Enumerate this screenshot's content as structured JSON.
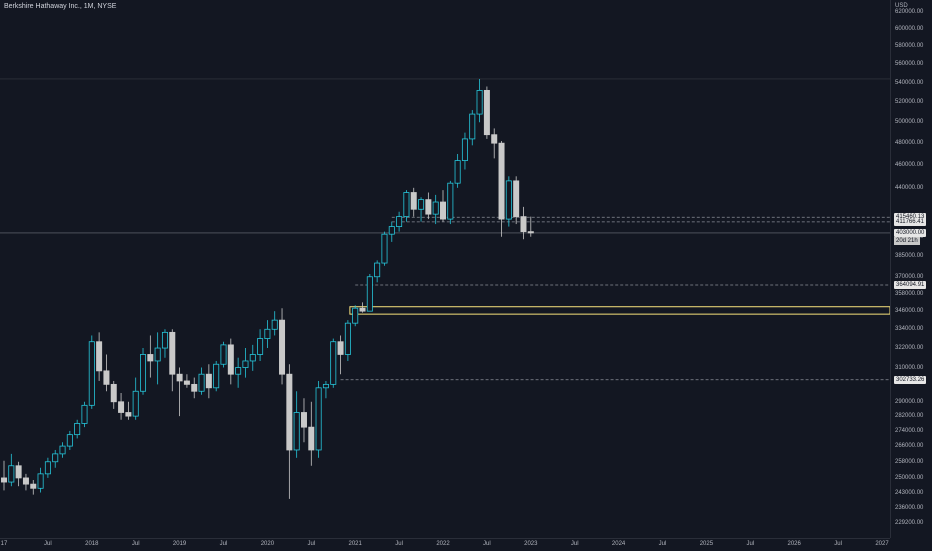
{
  "header": {
    "symbol_title": "Berkshire Hathaway Inc., 1M, NYSE",
    "currency": "USD"
  },
  "colors": {
    "background": "#131722",
    "up_body": "#131722",
    "up_border": "#26c6da",
    "down_body": "#c9c9c9",
    "zone_color": "#f7e27c",
    "dashed_line": "#8a8e98",
    "badge_bg": "#e6e6e6"
  },
  "price_axis": {
    "ticks": [
      "620000.00",
      "600000.00",
      "580000.00",
      "560000.00",
      "540000.00",
      "520000.00",
      "500000.00",
      "480000.00",
      "460000.00",
      "440000.00",
      "415460.13",
      "411766.41",
      "400000.00",
      "385000.00",
      "370000.00",
      "364094.91",
      "358000.00",
      "346000.00",
      "334000.00",
      "322000.00",
      "310000.00",
      "302733.26",
      "290000.00",
      "282000.00",
      "274000.00",
      "266000.00",
      "258000.00",
      "250000.00",
      "243000.00",
      "236000.00",
      "229200.00"
    ],
    "last_price": "403000.00",
    "countdown": "20d 21h"
  },
  "time_axis": {
    "labels": [
      "17",
      "Jul",
      "2018",
      "Jul",
      "2019",
      "Jul",
      "2020",
      "Jul",
      "2021",
      "Jul",
      "2022",
      "Jul",
      "2023",
      "Jul",
      "2024",
      "Jul",
      "2025",
      "Jul",
      "2026",
      "Jul",
      "2027"
    ]
  },
  "chart_data": {
    "type": "candlestick",
    "title": "Berkshire Hathaway Inc., 1M, NYSE",
    "currency": "USD",
    "interval": "1M",
    "x_range": [
      "2017-01",
      "2027-01"
    ],
    "series": [
      {
        "date": "2017-01",
        "open": 250000,
        "high": 258500,
        "low": 244000,
        "close": 248000
      },
      {
        "date": "2017-02",
        "open": 248000,
        "high": 262000,
        "low": 246000,
        "close": 256000
      },
      {
        "date": "2017-03",
        "open": 256000,
        "high": 258000,
        "low": 246000,
        "close": 250000
      },
      {
        "date": "2017-04",
        "open": 250000,
        "high": 252000,
        "low": 244000,
        "close": 247000
      },
      {
        "date": "2017-05",
        "open": 247000,
        "high": 249000,
        "low": 242000,
        "close": 245000
      },
      {
        "date": "2017-06",
        "open": 245000,
        "high": 255000,
        "low": 243000,
        "close": 252000
      },
      {
        "date": "2017-07",
        "open": 252000,
        "high": 260000,
        "low": 250000,
        "close": 258000
      },
      {
        "date": "2017-08",
        "open": 258000,
        "high": 264000,
        "low": 255000,
        "close": 262000
      },
      {
        "date": "2017-09",
        "open": 262000,
        "high": 268000,
        "low": 260000,
        "close": 266000
      },
      {
        "date": "2017-10",
        "open": 266000,
        "high": 274000,
        "low": 264000,
        "close": 272000
      },
      {
        "date": "2017-11",
        "open": 272000,
        "high": 280000,
        "low": 270000,
        "close": 278000
      },
      {
        "date": "2017-12",
        "open": 278000,
        "high": 290000,
        "low": 276000,
        "close": 288000
      },
      {
        "date": "2018-01",
        "open": 288000,
        "high": 330000,
        "low": 286000,
        "close": 326000
      },
      {
        "date": "2018-02",
        "open": 326000,
        "high": 332000,
        "low": 302000,
        "close": 308000
      },
      {
        "date": "2018-03",
        "open": 308000,
        "high": 318000,
        "low": 296000,
        "close": 300000
      },
      {
        "date": "2018-04",
        "open": 300000,
        "high": 302000,
        "low": 286000,
        "close": 290000
      },
      {
        "date": "2018-05",
        "open": 290000,
        "high": 295000,
        "low": 280000,
        "close": 284000
      },
      {
        "date": "2018-06",
        "open": 284000,
        "high": 290000,
        "low": 280000,
        "close": 282000
      },
      {
        "date": "2018-07",
        "open": 282000,
        "high": 304000,
        "low": 280000,
        "close": 296000
      },
      {
        "date": "2018-08",
        "open": 296000,
        "high": 322000,
        "low": 294000,
        "close": 318000
      },
      {
        "date": "2018-09",
        "open": 318000,
        "high": 330000,
        "low": 304000,
        "close": 314000
      },
      {
        "date": "2018-10",
        "open": 314000,
        "high": 332000,
        "low": 300000,
        "close": 322000
      },
      {
        "date": "2018-11",
        "open": 322000,
        "high": 334000,
        "low": 316000,
        "close": 332000
      },
      {
        "date": "2018-12",
        "open": 332000,
        "high": 334000,
        "low": 296000,
        "close": 306000
      },
      {
        "date": "2019-01",
        "open": 306000,
        "high": 310000,
        "low": 282000,
        "close": 302000
      },
      {
        "date": "2019-02",
        "open": 302000,
        "high": 306000,
        "low": 298000,
        "close": 300000
      },
      {
        "date": "2019-03",
        "open": 300000,
        "high": 304000,
        "low": 292000,
        "close": 296000
      },
      {
        "date": "2019-04",
        "open": 296000,
        "high": 310000,
        "low": 294000,
        "close": 306000
      },
      {
        "date": "2019-05",
        "open": 306000,
        "high": 312000,
        "low": 292000,
        "close": 298000
      },
      {
        "date": "2019-06",
        "open": 298000,
        "high": 314000,
        "low": 296000,
        "close": 312000
      },
      {
        "date": "2019-07",
        "open": 312000,
        "high": 326000,
        "low": 310000,
        "close": 324000
      },
      {
        "date": "2019-08",
        "open": 324000,
        "high": 328000,
        "low": 300000,
        "close": 306000
      },
      {
        "date": "2019-09",
        "open": 306000,
        "high": 316000,
        "low": 298000,
        "close": 310000
      },
      {
        "date": "2019-10",
        "open": 310000,
        "high": 322000,
        "low": 304000,
        "close": 314000
      },
      {
        "date": "2019-11",
        "open": 314000,
        "high": 324000,
        "low": 308000,
        "close": 318000
      },
      {
        "date": "2019-12",
        "open": 318000,
        "high": 334000,
        "low": 314000,
        "close": 328000
      },
      {
        "date": "2020-01",
        "open": 328000,
        "high": 340000,
        "low": 322000,
        "close": 334000
      },
      {
        "date": "2020-02",
        "open": 334000,
        "high": 346000,
        "low": 330000,
        "close": 340000
      },
      {
        "date": "2020-03",
        "open": 340000,
        "high": 348000,
        "low": 300000,
        "close": 306000
      },
      {
        "date": "2020-04",
        "open": 306000,
        "high": 312000,
        "low": 240000,
        "close": 264000
      },
      {
        "date": "2020-05",
        "open": 264000,
        "high": 296000,
        "low": 260000,
        "close": 284000
      },
      {
        "date": "2020-06",
        "open": 284000,
        "high": 292000,
        "low": 268000,
        "close": 276000
      },
      {
        "date": "2020-07",
        "open": 276000,
        "high": 290000,
        "low": 256000,
        "close": 264000
      },
      {
        "date": "2020-08",
        "open": 264000,
        "high": 302000,
        "low": 260000,
        "close": 298000
      },
      {
        "date": "2020-09",
        "open": 298000,
        "high": 302000,
        "low": 292000,
        "close": 300000
      },
      {
        "date": "2020-10",
        "open": 300000,
        "high": 328000,
        "low": 298000,
        "close": 326000
      },
      {
        "date": "2020-11",
        "open": 326000,
        "high": 330000,
        "low": 306000,
        "close": 318000
      },
      {
        "date": "2020-12",
        "open": 318000,
        "high": 340000,
        "low": 314000,
        "close": 338000
      },
      {
        "date": "2021-01",
        "open": 338000,
        "high": 350000,
        "low": 336000,
        "close": 348000
      },
      {
        "date": "2021-02",
        "open": 348000,
        "high": 352000,
        "low": 345000,
        "close": 346000
      },
      {
        "date": "2021-03",
        "open": 346000,
        "high": 372000,
        "low": 346000,
        "close": 370000
      },
      {
        "date": "2021-04",
        "open": 370000,
        "high": 382000,
        "low": 366000,
        "close": 380000
      },
      {
        "date": "2021-05",
        "open": 380000,
        "high": 404000,
        "low": 378000,
        "close": 402000
      },
      {
        "date": "2021-06",
        "open": 402000,
        "high": 412000,
        "low": 396000,
        "close": 408000
      },
      {
        "date": "2021-07",
        "open": 408000,
        "high": 420000,
        "low": 404000,
        "close": 416000
      },
      {
        "date": "2021-08",
        "open": 416000,
        "high": 438000,
        "low": 412000,
        "close": 436000
      },
      {
        "date": "2021-09",
        "open": 436000,
        "high": 440000,
        "low": 416000,
        "close": 422000
      },
      {
        "date": "2021-10",
        "open": 422000,
        "high": 432000,
        "low": 412000,
        "close": 430000
      },
      {
        "date": "2021-11",
        "open": 430000,
        "high": 436000,
        "low": 414000,
        "close": 418000
      },
      {
        "date": "2021-12",
        "open": 418000,
        "high": 434000,
        "low": 410000,
        "close": 428000
      },
      {
        "date": "2022-01",
        "open": 428000,
        "high": 438000,
        "low": 412000,
        "close": 414000
      },
      {
        "date": "2022-02",
        "open": 414000,
        "high": 446000,
        "low": 410000,
        "close": 444000
      },
      {
        "date": "2022-03",
        "open": 444000,
        "high": 470000,
        "low": 440000,
        "close": 464000
      },
      {
        "date": "2022-04",
        "open": 464000,
        "high": 490000,
        "low": 456000,
        "close": 484000
      },
      {
        "date": "2022-05",
        "open": 484000,
        "high": 512000,
        "low": 478000,
        "close": 508000
      },
      {
        "date": "2022-06",
        "open": 508000,
        "high": 544000,
        "low": 500000,
        "close": 532000
      },
      {
        "date": "2022-07",
        "open": 532000,
        "high": 536000,
        "low": 484000,
        "close": 488000
      },
      {
        "date": "2022-08",
        "open": 488000,
        "high": 494000,
        "low": 466000,
        "close": 480000
      },
      {
        "date": "2022-09",
        "open": 480000,
        "high": 482000,
        "low": 400000,
        "close": 414000
      },
      {
        "date": "2022-10",
        "open": 414000,
        "high": 450000,
        "low": 408000,
        "close": 446000
      },
      {
        "date": "2022-11",
        "open": 446000,
        "high": 450000,
        "low": 410000,
        "close": 416000
      },
      {
        "date": "2022-12",
        "open": 416000,
        "high": 424000,
        "low": 398000,
        "close": 404000
      },
      {
        "date": "2023-01",
        "open": 404000,
        "high": 416000,
        "low": 400000,
        "close": 403000
      }
    ],
    "horizontal_lines": [
      {
        "price": 415460.13,
        "label": "415460.13",
        "style": "dashed"
      },
      {
        "price": 411766.41,
        "label": "411766.41",
        "style": "dashed"
      },
      {
        "price": 364094.91,
        "label": "364094.91",
        "style": "dashed"
      },
      {
        "price": 302733.26,
        "label": "302733.26",
        "style": "dashed"
      }
    ],
    "zone": {
      "top": 349000,
      "bottom": 344000
    },
    "last_price": 403000,
    "y_axis": {
      "scale": "log",
      "visible_range": [
        225000,
        632000
      ]
    },
    "grid": false
  }
}
